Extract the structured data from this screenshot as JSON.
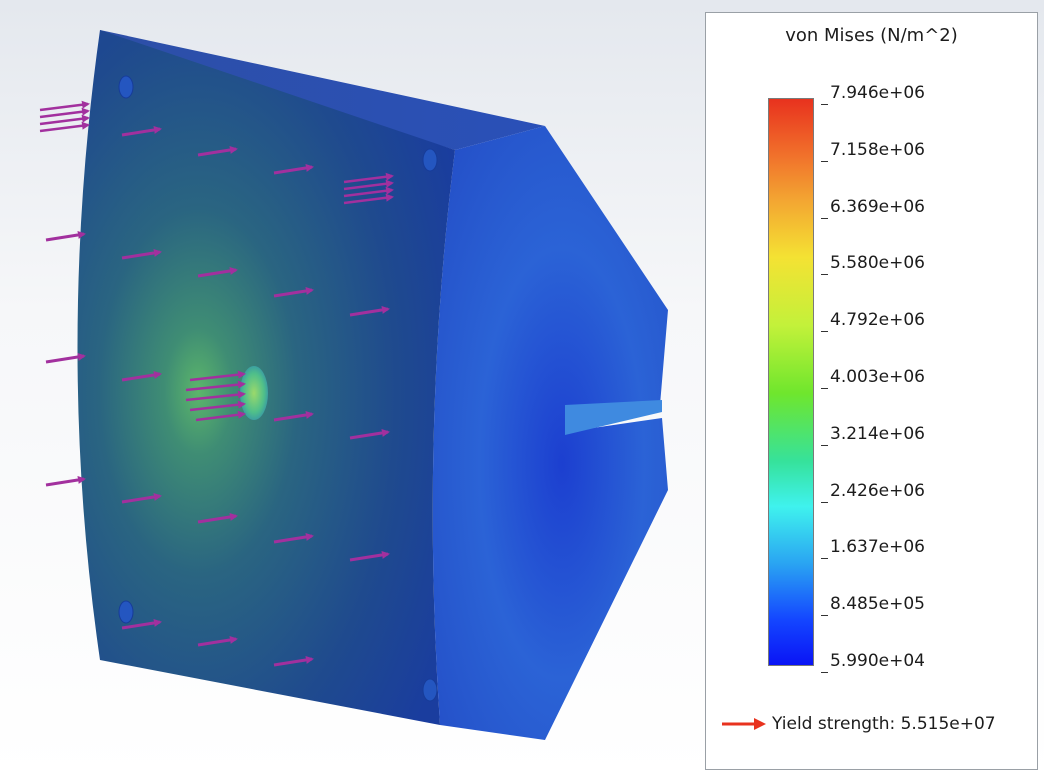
{
  "legend": {
    "title": "von Mises (N/m^2)",
    "ticks": [
      {
        "label": "7.946e+06",
        "value": 7946000
      },
      {
        "label": "7.158e+06",
        "value": 7158000
      },
      {
        "label": "6.369e+06",
        "value": 6369000
      },
      {
        "label": "5.580e+06",
        "value": 5580000
      },
      {
        "label": "4.792e+06",
        "value": 4792000
      },
      {
        "label": "4.003e+06",
        "value": 4003000
      },
      {
        "label": "3.214e+06",
        "value": 3214000
      },
      {
        "label": "2.426e+06",
        "value": 2426000
      },
      {
        "label": "1.637e+06",
        "value": 1637000
      },
      {
        "label": "8.485e+05",
        "value": 848500
      },
      {
        "label": "5.990e+04",
        "value": 59900
      }
    ],
    "max": 7946000,
    "min": 59900,
    "colorbar_colors": [
      "#e8321e",
      "#f4e233",
      "#6fe62d",
      "#3ff2ee",
      "#1446ff",
      "#0a14f5"
    ],
    "yield_label": "Yield strength: 5.515e+07",
    "yield_arrow_color": "#e8321e"
  },
  "model": {
    "load_arrow_color": "#a2309e",
    "stress_body_color": "#1f4aa0",
    "stress_hotspot_color": "#5fc06c"
  }
}
